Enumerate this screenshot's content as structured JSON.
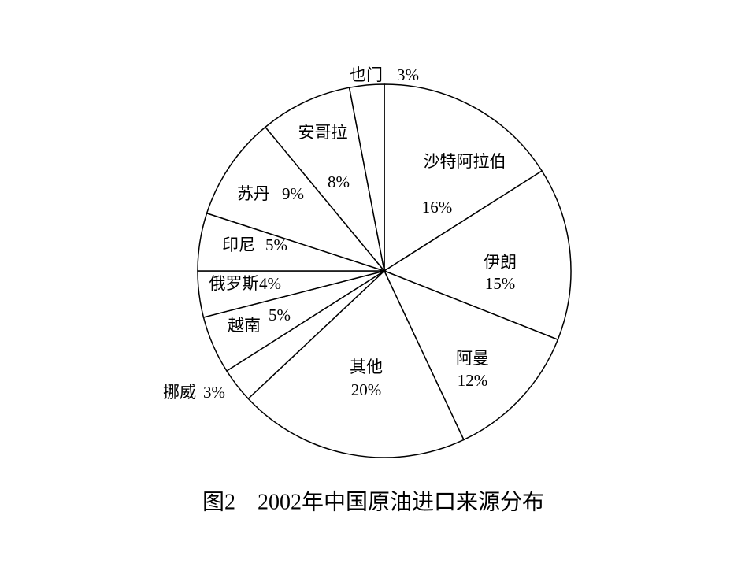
{
  "chart_data": {
    "type": "pie",
    "title": "图2　2002年中国原油进口来源分布",
    "categories": [
      "沙特阿拉伯",
      "伊朗",
      "阿曼",
      "其他",
      "挪威",
      "越南",
      "俄罗斯",
      "印尼",
      "苏丹",
      "安哥拉",
      "也门"
    ],
    "values": [
      16,
      15,
      12,
      20,
      3,
      5,
      4,
      5,
      9,
      8,
      3
    ],
    "value_labels": [
      "16%",
      "15%",
      "12%",
      "20%",
      "3%",
      "5%",
      "4%",
      "5%",
      "9%",
      "8%",
      "3%"
    ],
    "color": "#ffffff"
  }
}
